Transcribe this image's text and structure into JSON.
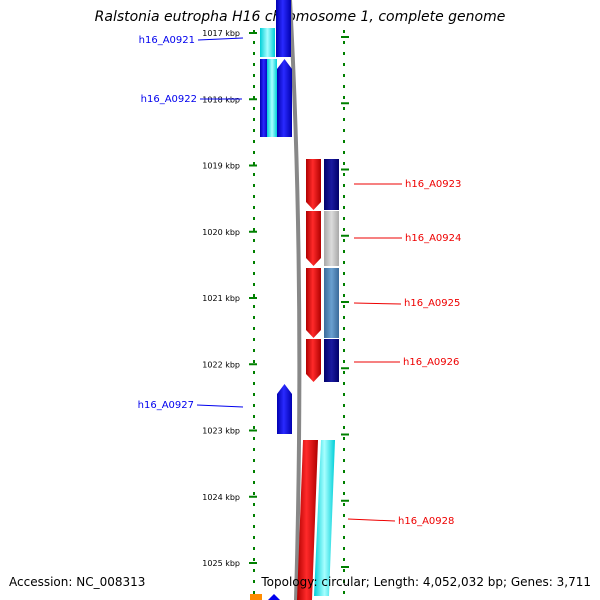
{
  "title": "Ralstonia eutropha H16 chromosome 1, complete genome",
  "footer": {
    "accession": "Accession: NC_008313",
    "summary": "Topology: circular; Length: 4,052,032 bp; Genes: 3,711"
  },
  "colors": {
    "forward": "#0000ee",
    "reverse": "#ee0000",
    "tick": "#008000",
    "backbone": "#888888"
  },
  "axis": {
    "unit": "kbp",
    "ticks": [
      {
        "kbp": 1017,
        "label": "1017 kbp"
      },
      {
        "kbp": 1018,
        "label": "1018 kbp"
      },
      {
        "kbp": 1019,
        "label": "1019 kbp"
      },
      {
        "kbp": 1020,
        "label": "1020 kbp"
      },
      {
        "kbp": 1021,
        "label": "1021 kbp"
      },
      {
        "kbp": 1022,
        "label": "1022 kbp"
      },
      {
        "kbp": 1023,
        "label": "1023 kbp"
      },
      {
        "kbp": 1024,
        "label": "1024 kbp"
      },
      {
        "kbp": 1025,
        "label": "1025 kbp"
      }
    ]
  },
  "genes": [
    {
      "name": "h16_A0921",
      "strand": "forward",
      "start_kbp": 1016.7,
      "end_kbp": 1017.35
    },
    {
      "name": "h16_A0922",
      "strand": "forward",
      "start_kbp": 1017.4,
      "end_kbp": 1018.55
    },
    {
      "name": "h16_A0923",
      "strand": "reverse",
      "start_kbp": 1018.9,
      "end_kbp": 1019.65
    },
    {
      "name": "h16_A0924",
      "strand": "reverse",
      "start_kbp": 1019.67,
      "end_kbp": 1020.5
    },
    {
      "name": "h16_A0925",
      "strand": "reverse",
      "start_kbp": 1020.52,
      "end_kbp": 1021.6
    },
    {
      "name": "h16_A0926",
      "strand": "reverse",
      "start_kbp": 1021.62,
      "end_kbp": 1022.25
    },
    {
      "name": "h16_A0927",
      "strand": "forward",
      "start_kbp": 1022.3,
      "end_kbp": 1023.05
    },
    {
      "name": "h16_A0928",
      "strand": "reverse",
      "start_kbp": 1023.15,
      "end_kbp": 1025.5
    }
  ]
}
